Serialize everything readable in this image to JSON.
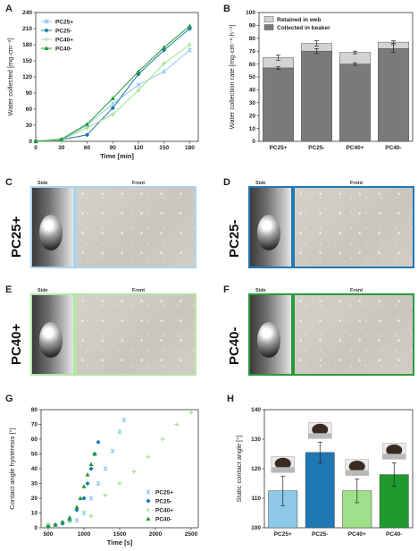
{
  "panels": {
    "A": "A",
    "B": "B",
    "C": "C",
    "D": "D",
    "E": "E",
    "F": "F",
    "G": "G",
    "H": "H"
  },
  "colors": {
    "PC25+": "#8ec9e8",
    "PC25-": "#1f77b4",
    "PC40+": "#9ee08a",
    "PC40-": "#1f9a2e",
    "retained": "#d3d3d3",
    "collected": "#7a7a7a"
  },
  "photos": [
    {
      "label": "PC25+",
      "side": "Side",
      "front": "Front",
      "border": "#a9d4ef"
    },
    {
      "label": "PC25-",
      "side": "Side",
      "front": "Front",
      "border": "#2178b4"
    },
    {
      "label": "PC40+",
      "side": "Side",
      "front": "Front",
      "border": "#b4e6a4"
    },
    {
      "label": "PC40-",
      "side": "Side",
      "front": "Front",
      "border": "#2a9a3a"
    }
  ],
  "chart_data": [
    {
      "panel": "A",
      "type": "line",
      "xlabel": "Time [min]",
      "ylabel": "Water collected [mg·cm⁻²]",
      "xlim": [
        0,
        190
      ],
      "ylim": [
        0,
        240
      ],
      "xticks": [
        0,
        30,
        60,
        90,
        120,
        150,
        180
      ],
      "yticks": [
        0,
        30,
        60,
        90,
        120,
        150,
        180,
        210,
        240
      ],
      "x": [
        0,
        30,
        60,
        90,
        120,
        150,
        180
      ],
      "legend_position": "top-left",
      "series": [
        {
          "name": "PC25+",
          "values": [
            0,
            2,
            30,
            70,
            105,
            130,
            170
          ]
        },
        {
          "name": "PC25-",
          "values": [
            0,
            3,
            12,
            62,
            125,
            170,
            210
          ]
        },
        {
          "name": "PC40+",
          "values": [
            0,
            2,
            25,
            50,
            95,
            145,
            180
          ]
        },
        {
          "name": "PC40-",
          "values": [
            0,
            4,
            32,
            80,
            130,
            175,
            215
          ]
        }
      ]
    },
    {
      "panel": "B",
      "type": "bar",
      "stacked": true,
      "ylabel": "Water collection rate [mg·cm⁻²·h⁻¹]",
      "ylim": [
        0,
        100
      ],
      "yticks": [
        0,
        10,
        20,
        30,
        40,
        50,
        60,
        70,
        80,
        90,
        100
      ],
      "categories": [
        "PC25+",
        "PC25-",
        "PC40+",
        "PC40-"
      ],
      "legend_position": "top-left",
      "series": [
        {
          "name": "Collected in beaker",
          "values": [
            57,
            70,
            60,
            72
          ],
          "errors": [
            1,
            2,
            1,
            3
          ]
        },
        {
          "name": "Retained in web",
          "values": [
            8,
            6,
            9,
            5
          ],
          "errors": [
            2,
            2,
            1,
            1
          ]
        }
      ]
    },
    {
      "panel": "G",
      "type": "scatter",
      "xlabel": "Time [s]",
      "ylabel": "Contact angle hysteresis [°]",
      "xlim": [
        400,
        2600
      ],
      "ylim": [
        0,
        80
      ],
      "xticks": [
        500,
        1000,
        1500,
        2000,
        2500
      ],
      "yticks": [
        0,
        10,
        20,
        30,
        40,
        50,
        60,
        70,
        80
      ],
      "legend_position": "bottom-right",
      "series": [
        {
          "name": "PC25+",
          "x": [
            500,
            700,
            900,
            1000,
            1100,
            1200,
            1300,
            1400,
            1500,
            1560
          ],
          "values": [
            2,
            3,
            5,
            10,
            20,
            30,
            40,
            52,
            65,
            73
          ]
        },
        {
          "name": "PC25-",
          "x": [
            500,
            600,
            700,
            800,
            900,
            1000,
            1050,
            1100,
            1150,
            1200
          ],
          "values": [
            1,
            2,
            3,
            5,
            12,
            20,
            30,
            40,
            50,
            58
          ]
        },
        {
          "name": "PC40+",
          "x": [
            500,
            800,
            1100,
            1300,
            1500,
            1700,
            1900,
            2100,
            2300,
            2500
          ],
          "values": [
            2,
            4,
            8,
            22,
            30,
            38,
            48,
            60,
            70,
            78
          ]
        },
        {
          "name": "PC40-",
          "x": [
            500,
            600,
            700,
            800,
            900,
            950,
            1000,
            1050,
            1100,
            1150
          ],
          "values": [
            1,
            2,
            4,
            7,
            14,
            20,
            28,
            36,
            43,
            50
          ]
        }
      ]
    },
    {
      "panel": "H",
      "type": "bar",
      "ylabel": "Static contact angle [°]",
      "ylim": [
        100,
        140
      ],
      "yticks": [
        100,
        110,
        120,
        130,
        140
      ],
      "categories": [
        "PC25+",
        "PC25-",
        "PC40+",
        "PC40-"
      ],
      "values": [
        112.5,
        125.5,
        112.5,
        118
      ],
      "errors": [
        5,
        3.5,
        4,
        4
      ]
    }
  ]
}
